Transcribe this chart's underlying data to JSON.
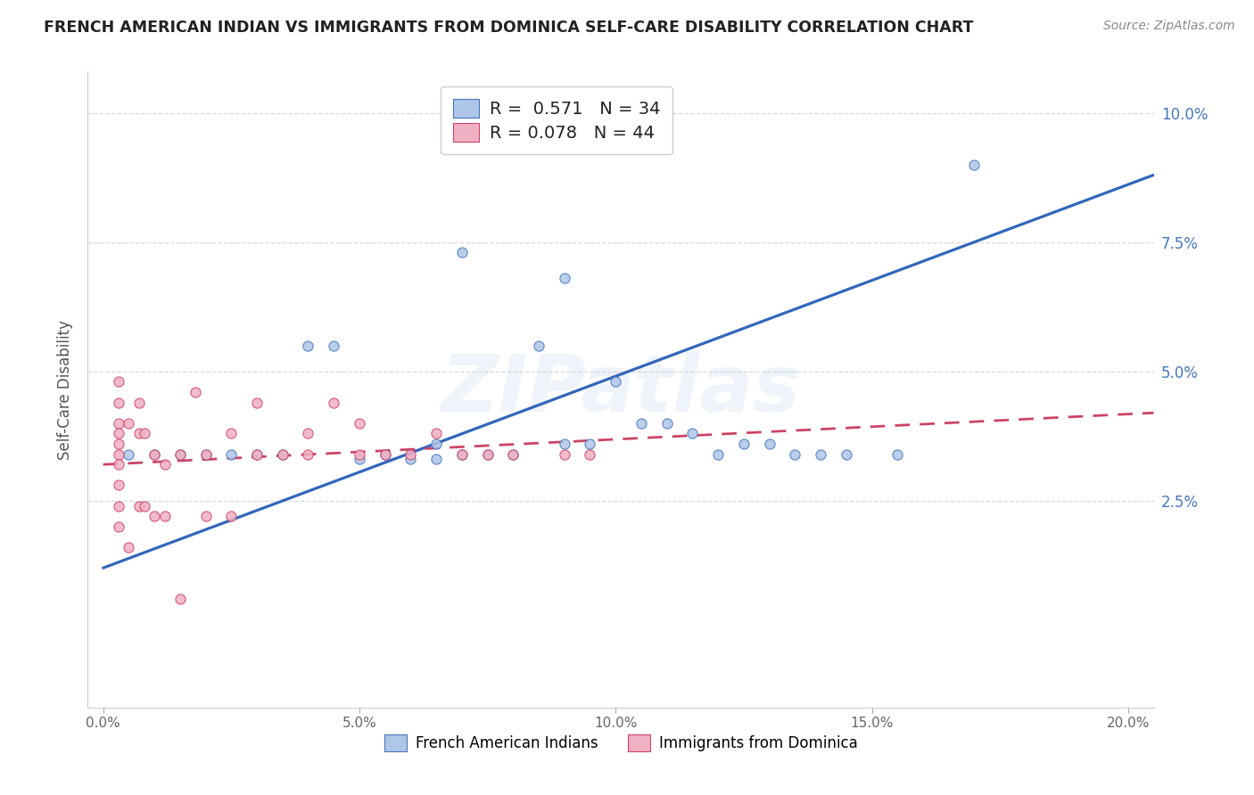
{
  "title": "FRENCH AMERICAN INDIAN VS IMMIGRANTS FROM DOMINICA SELF-CARE DISABILITY CORRELATION CHART",
  "source": "Source: ZipAtlas.com",
  "ylabel": "Self-Care Disability",
  "xlim": [
    -0.003,
    0.205
  ],
  "ylim": [
    -0.015,
    0.108
  ],
  "yticks": [
    0.025,
    0.05,
    0.075,
    0.1
  ],
  "ytick_labels": [
    "2.5%",
    "5.0%",
    "7.5%",
    "10.0%"
  ],
  "xticks": [
    0.0,
    0.05,
    0.1,
    0.15,
    0.2
  ],
  "xtick_labels": [
    "0.0%",
    "5.0%",
    "10.0%",
    "15.0%",
    "20.0%"
  ],
  "blue_R": "0.571",
  "blue_N": "34",
  "pink_R": "0.078",
  "pink_N": "44",
  "blue_fill": "#aec6e8",
  "pink_fill": "#f0b0c4",
  "blue_edge": "#4477bb",
  "pink_edge": "#cc4466",
  "blue_line": "#3366bb",
  "pink_line": "#cc4466",
  "legend1_label": "French American Indians",
  "legend2_label": "Immigrants from Dominica",
  "watermark_text": "ZIPatlas",
  "blue_x": [
    0.005,
    0.01,
    0.015,
    0.02,
    0.025,
    0.03,
    0.035,
    0.04,
    0.045,
    0.05,
    0.055,
    0.06,
    0.065,
    0.065,
    0.07,
    0.075,
    0.08,
    0.085,
    0.09,
    0.095,
    0.1,
    0.105,
    0.11,
    0.115,
    0.12,
    0.125,
    0.13,
    0.135,
    0.14,
    0.145,
    0.155,
    0.07,
    0.09,
    0.17
  ],
  "blue_y": [
    0.034,
    0.034,
    0.034,
    0.034,
    0.034,
    0.034,
    0.034,
    0.055,
    0.055,
    0.033,
    0.034,
    0.033,
    0.033,
    0.036,
    0.034,
    0.034,
    0.034,
    0.055,
    0.036,
    0.036,
    0.048,
    0.04,
    0.04,
    0.038,
    0.034,
    0.036,
    0.036,
    0.034,
    0.034,
    0.034,
    0.034,
    0.073,
    0.068,
    0.09
  ],
  "pink_x": [
    0.003,
    0.003,
    0.003,
    0.003,
    0.003,
    0.003,
    0.003,
    0.003,
    0.003,
    0.003,
    0.005,
    0.005,
    0.007,
    0.007,
    0.007,
    0.008,
    0.008,
    0.01,
    0.01,
    0.012,
    0.012,
    0.015,
    0.015,
    0.018,
    0.02,
    0.02,
    0.025,
    0.025,
    0.03,
    0.03,
    0.035,
    0.04,
    0.04,
    0.045,
    0.05,
    0.05,
    0.055,
    0.06,
    0.065,
    0.07,
    0.075,
    0.08,
    0.09,
    0.095
  ],
  "pink_y": [
    0.048,
    0.044,
    0.04,
    0.038,
    0.036,
    0.034,
    0.032,
    0.028,
    0.024,
    0.02,
    0.04,
    0.016,
    0.044,
    0.038,
    0.024,
    0.038,
    0.024,
    0.034,
    0.022,
    0.032,
    0.022,
    0.034,
    0.006,
    0.046,
    0.034,
    0.022,
    0.038,
    0.022,
    0.044,
    0.034,
    0.034,
    0.034,
    0.038,
    0.044,
    0.04,
    0.034,
    0.034,
    0.034,
    0.038,
    0.034,
    0.034,
    0.034,
    0.034,
    0.034
  ],
  "blue_trend_x": [
    0.0,
    0.205
  ],
  "blue_trend_y": [
    0.012,
    0.088
  ],
  "pink_trend_x": [
    0.0,
    0.205
  ],
  "pink_trend_y": [
    0.032,
    0.042
  ],
  "bg": "#ffffff",
  "grid_color": "#d8d8d8",
  "title_color": "#222222",
  "source_color": "#888888",
  "tick_color": "#4477bb"
}
